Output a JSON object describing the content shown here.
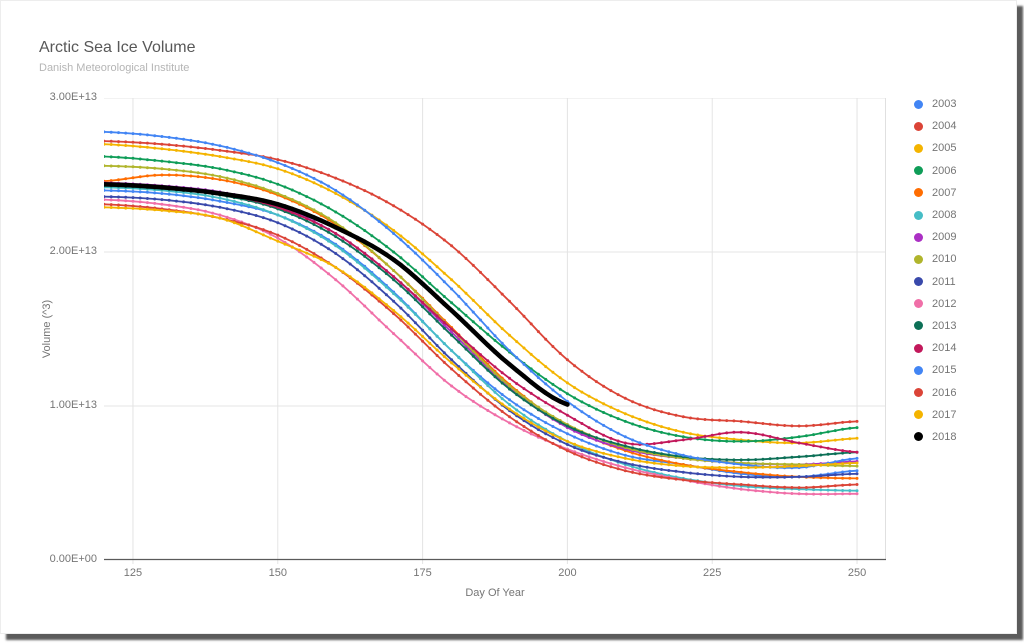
{
  "header": {
    "title": "Arctic Sea Ice Volume",
    "subtitle": "Danish Meteorological Institute"
  },
  "chart_data": {
    "type": "line",
    "title": "Arctic Sea Ice Volume",
    "subtitle": "Danish Meteorological Institute",
    "xlabel": "Day Of Year",
    "ylabel": "Volume (^3)",
    "values_unit": "m^3, values in multiples of 1e13",
    "xlim": [
      120,
      255
    ],
    "ylim": [
      0,
      3
    ],
    "grid": true,
    "legend_position": "right",
    "x_ticks": [
      125,
      150,
      175,
      200,
      225,
      250
    ],
    "y_ticks": [
      {
        "label": "0.00E+00",
        "value": 0
      },
      {
        "label": "1.00E+13",
        "value": 1
      },
      {
        "label": "2.00E+13",
        "value": 2
      },
      {
        "label": "3.00E+13",
        "value": 3
      }
    ],
    "days": [
      120,
      130,
      140,
      150,
      160,
      170,
      180,
      190,
      200,
      210,
      220,
      230,
      240,
      250
    ],
    "series": [
      {
        "name": "2003",
        "color": "#4285f4",
        "width": 1.8,
        "values": [
          2.4,
          2.38,
          2.33,
          2.24,
          2.05,
          1.74,
          1.36,
          1.04,
          0.82,
          0.68,
          0.62,
          0.56,
          0.54,
          0.58
        ]
      },
      {
        "name": "2004",
        "color": "#db4437",
        "width": 1.8,
        "values": [
          2.72,
          2.7,
          2.66,
          2.6,
          2.48,
          2.3,
          2.04,
          1.68,
          1.3,
          1.05,
          0.93,
          0.9,
          0.87,
          0.9
        ]
      },
      {
        "name": "2005",
        "color": "#f4b400",
        "width": 1.8,
        "values": [
          2.7,
          2.67,
          2.62,
          2.54,
          2.38,
          2.14,
          1.82,
          1.46,
          1.15,
          0.95,
          0.83,
          0.78,
          0.76,
          0.79
        ]
      },
      {
        "name": "2006",
        "color": "#0f9d58",
        "width": 1.8,
        "values": [
          2.62,
          2.59,
          2.54,
          2.44,
          2.26,
          2.0,
          1.67,
          1.35,
          1.08,
          0.9,
          0.8,
          0.77,
          0.8,
          0.86
        ]
      },
      {
        "name": "2007",
        "color": "#ff6d01",
        "width": 1.8,
        "values": [
          2.46,
          2.5,
          2.47,
          2.37,
          2.18,
          1.88,
          1.51,
          1.14,
          0.87,
          0.71,
          0.62,
          0.57,
          0.54,
          0.53
        ]
      },
      {
        "name": "2008",
        "color": "#46bdc6",
        "width": 1.8,
        "values": [
          2.42,
          2.4,
          2.35,
          2.24,
          2.04,
          1.73,
          1.36,
          1.01,
          0.77,
          0.62,
          0.53,
          0.48,
          0.46,
          0.45
        ]
      },
      {
        "name": "2009",
        "color": "#ab30c4",
        "width": 1.8,
        "values": [
          2.45,
          2.43,
          2.39,
          2.3,
          2.12,
          1.84,
          1.48,
          1.12,
          0.86,
          0.72,
          0.66,
          0.63,
          0.62,
          0.64
        ]
      },
      {
        "name": "2010",
        "color": "#b0b52c",
        "width": 1.8,
        "values": [
          2.56,
          2.54,
          2.49,
          2.38,
          2.19,
          1.88,
          1.5,
          1.13,
          0.88,
          0.73,
          0.66,
          0.63,
          0.62,
          0.61
        ]
      },
      {
        "name": "2011",
        "color": "#3949ab",
        "width": 1.8,
        "values": [
          2.36,
          2.34,
          2.29,
          2.19,
          1.99,
          1.68,
          1.3,
          0.97,
          0.75,
          0.63,
          0.57,
          0.54,
          0.54,
          0.56
        ]
      },
      {
        "name": "2012",
        "color": "#f06fa8",
        "width": 1.8,
        "values": [
          2.34,
          2.31,
          2.24,
          2.09,
          1.82,
          1.47,
          1.13,
          0.89,
          0.72,
          0.6,
          0.52,
          0.46,
          0.43,
          0.43
        ]
      },
      {
        "name": "2013",
        "color": "#0d7057",
        "width": 1.8,
        "values": [
          2.43,
          2.41,
          2.37,
          2.28,
          2.1,
          1.82,
          1.46,
          1.11,
          0.87,
          0.74,
          0.67,
          0.65,
          0.67,
          0.7
        ]
      },
      {
        "name": "2014",
        "color": "#c2185b",
        "width": 1.8,
        "values": [
          2.44,
          2.42,
          2.38,
          2.29,
          2.12,
          1.84,
          1.5,
          1.18,
          0.94,
          0.76,
          0.78,
          0.83,
          0.76,
          0.7
        ]
      },
      {
        "name": "2015",
        "color": "#4285f4",
        "width": 1.8,
        "values": [
          2.78,
          2.75,
          2.69,
          2.58,
          2.4,
          2.12,
          1.76,
          1.36,
          1.03,
          0.8,
          0.68,
          0.62,
          0.6,
          0.66
        ]
      },
      {
        "name": "2016",
        "color": "#db4437",
        "width": 1.8,
        "values": [
          2.31,
          2.28,
          2.22,
          2.11,
          1.9,
          1.6,
          1.24,
          0.93,
          0.71,
          0.58,
          0.52,
          0.49,
          0.47,
          0.49
        ]
      },
      {
        "name": "2017",
        "color": "#f4b400",
        "width": 1.8,
        "values": [
          2.29,
          2.27,
          2.22,
          2.07,
          1.9,
          1.62,
          1.28,
          0.98,
          0.77,
          0.66,
          0.61,
          0.6,
          0.61,
          0.63
        ]
      },
      {
        "name": "2018",
        "color": "#000000",
        "width": 4.5,
        "values": [
          2.44,
          2.42,
          2.38,
          2.31,
          2.16,
          1.95,
          1.62,
          1.27,
          1.01
        ]
      }
    ]
  },
  "style_colors": {
    "gridline": "#e4e4e4",
    "plot_border": "#e0e0e0",
    "axis_baseline": "#5a5a5a",
    "title_text": "#585858",
    "subtitle_text": "#b5b5b5",
    "tick_text": "#757575",
    "legend_text": "#757575"
  }
}
